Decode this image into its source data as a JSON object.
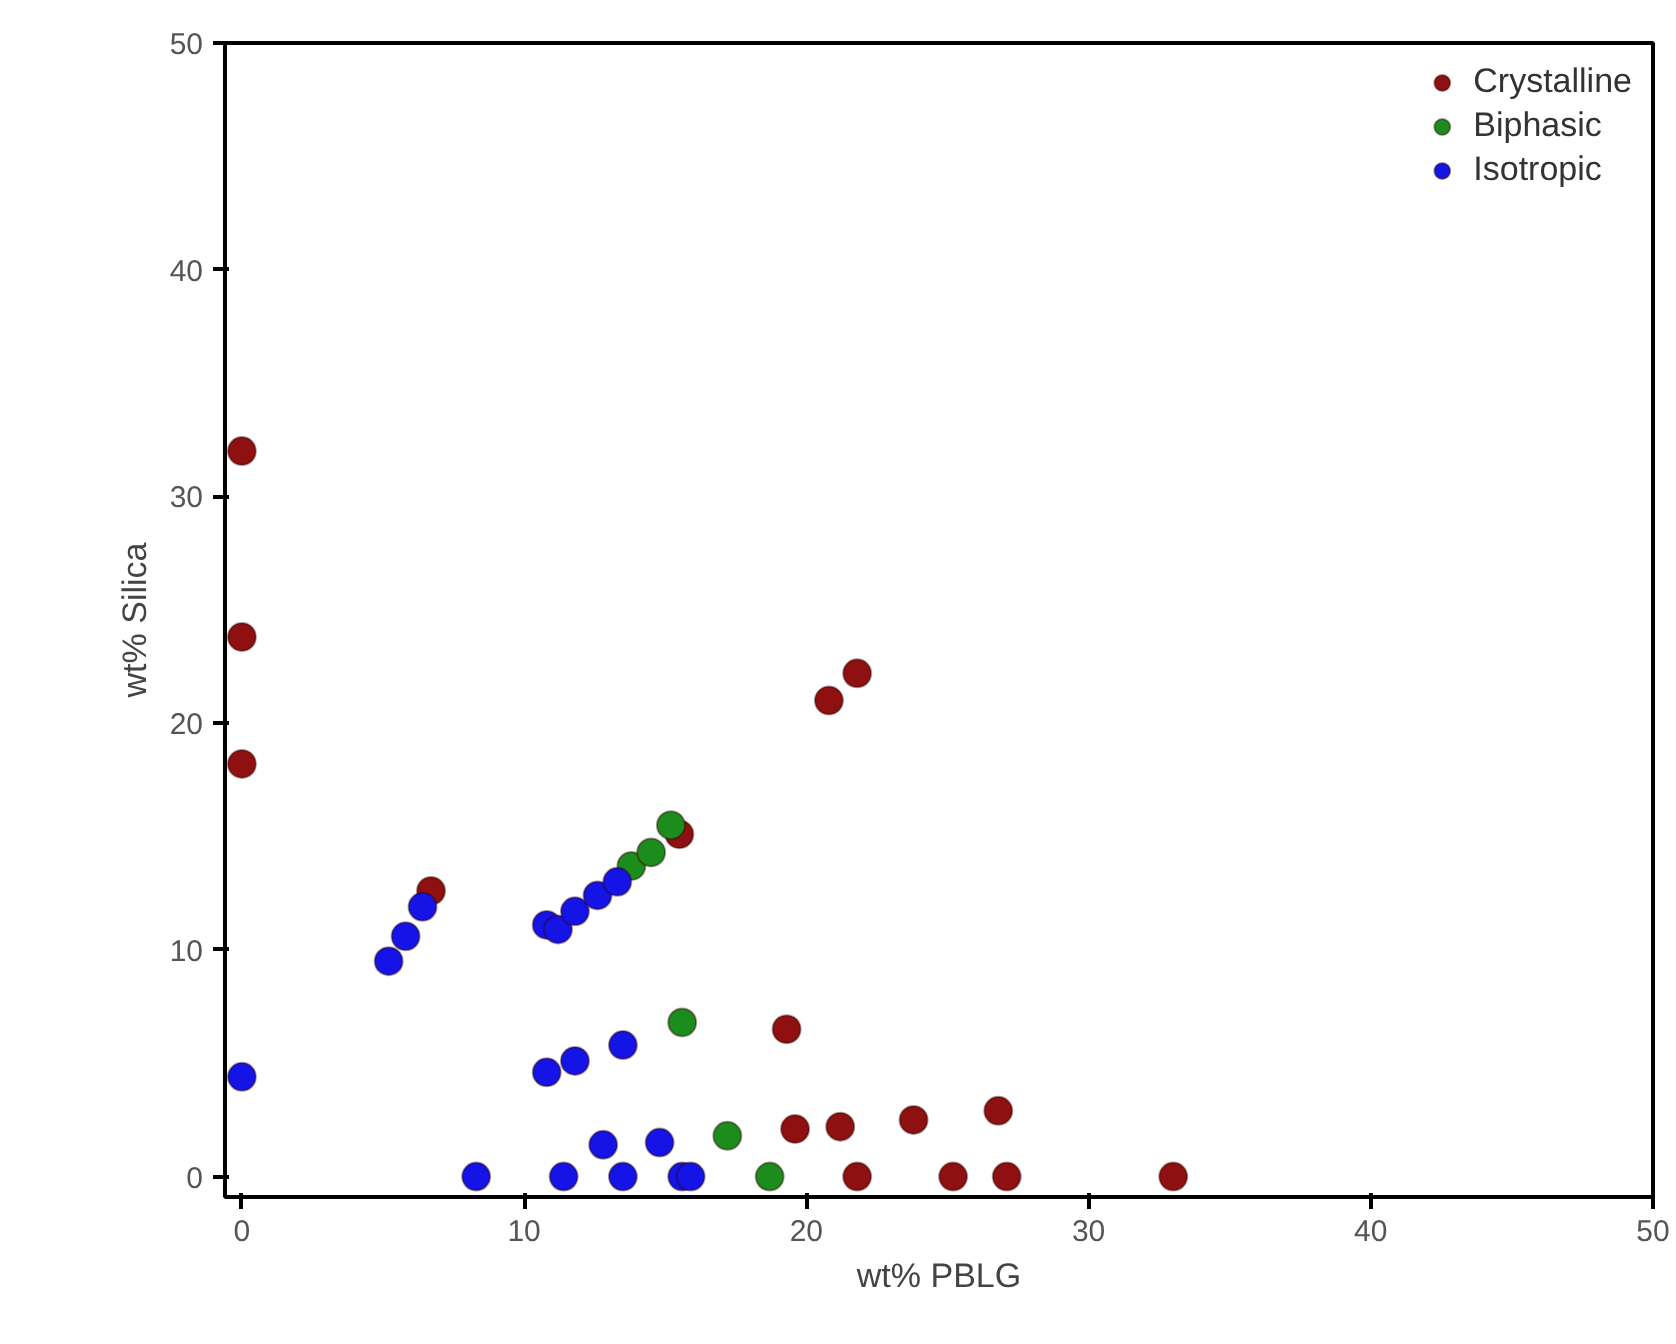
{
  "chart_data": {
    "type": "scatter",
    "xlabel": "wt% PBLG",
    "ylabel": "wt% Silica",
    "xlim": [
      -0.6,
      50
    ],
    "ylim": [
      -0.9,
      50
    ],
    "xticks": [
      0,
      10,
      20,
      30,
      40,
      50
    ],
    "yticks": [
      0,
      10,
      20,
      30,
      40,
      50
    ],
    "grid": false,
    "legend": "top right",
    "marker": "circle",
    "series": [
      {
        "name": "Crystalline",
        "color": "#8e1010",
        "x": [
          0,
          0,
          0,
          6.7,
          15.5,
          20.8,
          21.8,
          19.3,
          19.6,
          21.2,
          23.8,
          26.8,
          21.8,
          25.2,
          27.1,
          33.0
        ],
        "values": [
          32,
          23.8,
          18.2,
          12.6,
          15.1,
          21,
          22.2,
          6.5,
          2.1,
          2.2,
          2.5,
          2.9,
          0,
          0,
          0,
          0
        ]
      },
      {
        "name": "Biphasic",
        "color": "#1c8c1c",
        "x": [
          13.8,
          14.5,
          15.2,
          15.6,
          17.2,
          18.7
        ],
        "values": [
          13.7,
          14.3,
          15.5,
          6.8,
          1.8,
          0
        ]
      },
      {
        "name": "Isotropic",
        "color": "#1414e6",
        "x": [
          0,
          5.2,
          5.8,
          6.4,
          10.8,
          11.2,
          11.8,
          12.6,
          13.3,
          10.8,
          11.8,
          13.5,
          12.8,
          14.8,
          8.3,
          11.4,
          13.5,
          15.6,
          15.9
        ],
        "values": [
          4.4,
          9.5,
          10.6,
          11.9,
          11.1,
          10.9,
          11.7,
          12.4,
          13.0,
          4.6,
          5.1,
          5.8,
          1.4,
          1.5,
          0,
          0,
          0,
          0,
          0
        ]
      }
    ]
  }
}
